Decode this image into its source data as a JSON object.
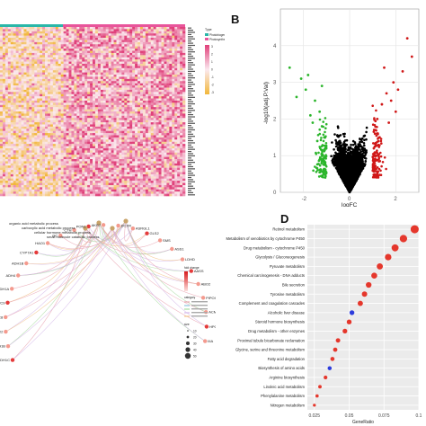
{
  "panels": {
    "a": {
      "letter": ""
    },
    "b": {
      "letter": "B"
    },
    "c": {
      "letter": ""
    },
    "d": {
      "letter": "D"
    }
  },
  "colors": {
    "heat_low": "#f2b73a",
    "heat_mid": "#fbe9ef",
    "heat_high": "#e0407a",
    "volcano_down": "#2bb52b",
    "volcano_up": "#d01818",
    "volcano_ns": "#000000",
    "dot_red": "#e5372c",
    "dot_blue": "#2c3cdc"
  },
  "chart_data": [
    {
      "panel": "A",
      "type": "heatmap",
      "title": "",
      "legend": {
        "group_title": "Type",
        "groups": [
          "Photobiogenesis",
          "Photosynthesis"
        ],
        "group_colors": [
          "#2ab7a8",
          "#e8559b"
        ],
        "scale_labels": [
          "3",
          "2",
          "1",
          "0",
          "-1",
          "-2",
          "-3"
        ]
      },
      "rows": 78,
      "columns": 70,
      "legend_position": "right"
    },
    {
      "panel": "B",
      "type": "scatter",
      "title": "",
      "xlabel": "logFC",
      "ylabel": "-log10(adj.P.Val)",
      "xlim": [
        -3,
        3
      ],
      "ylim": [
        0,
        5
      ],
      "xticks": [
        "-2",
        "0",
        "2"
      ],
      "yticks": [
        "0",
        "1",
        "2",
        "3",
        "4"
      ],
      "grid": true,
      "series": [
        {
          "name": "",
          "color": "#2bb52b",
          "points": [
            [
              -2.6,
              3.4
            ],
            [
              -2.1,
              3.1
            ],
            [
              -1.9,
              2.8
            ],
            [
              -1.5,
              2.5
            ],
            [
              -1.3,
              2.2
            ],
            [
              -1.2,
              1.8
            ],
            [
              -1.1,
              1.5
            ],
            [
              -1.05,
              1.2
            ],
            [
              -1.6,
              1.9
            ],
            [
              -2.3,
              2.6
            ],
            [
              -1.4,
              1.4
            ],
            [
              -1.2,
              2.9
            ],
            [
              -1.8,
              3.2
            ],
            [
              -1.15,
              1.0
            ],
            [
              -1.7,
              2.1
            ]
          ]
        },
        {
          "name": "",
          "color": "#d01818",
          "points": [
            [
              2.7,
              3.7
            ],
            [
              2.3,
              3.3
            ],
            [
              1.9,
              3.0
            ],
            [
              1.6,
              2.7
            ],
            [
              1.4,
              2.4
            ],
            [
              1.2,
              2.0
            ],
            [
              1.1,
              1.6
            ],
            [
              1.05,
              1.2
            ],
            [
              2.0,
              2.2
            ],
            [
              1.3,
              1.5
            ],
            [
              1.7,
              1.9
            ],
            [
              2.5,
              4.2
            ],
            [
              1.15,
              1.0
            ],
            [
              1.5,
              3.4
            ],
            [
              2.1,
              2.8
            ],
            [
              1.8,
              2.5
            ]
          ]
        }
      ]
    },
    {
      "panel": "C",
      "type": "table",
      "title": "",
      "left_terms": [
        "organic acid metabolic process",
        "carboxylic acid metabolic process",
        "cellular hormone metabolic process",
        "small molecule catabolic process"
      ],
      "genes": [
        "ADH1C",
        "ADH1B",
        "EPHX2",
        "CYP2C8",
        "CYP2C9",
        "ADH1A",
        "ADH4",
        "ADH1B",
        "CYP7A1",
        "HAO1",
        "GC",
        "CTH",
        "PON1",
        "AKR7",
        "DCXR",
        "ASRGL1",
        "GLS2",
        "SMS",
        "ASS1",
        "LDHD",
        "AASS",
        "ABO2",
        "PIPOX",
        "ACMSD",
        "HPGD",
        "IIIA"
      ],
      "legend_fold_title": "fold change",
      "legend_category_title": "category",
      "legend_size_title": "size",
      "legend_sizes": [
        "10",
        "20",
        "30",
        "40",
        "50"
      ]
    },
    {
      "panel": "D",
      "type": "scatter",
      "title": "",
      "xlabel": "GeneRatio",
      "xlim": [
        0.02,
        0.1
      ],
      "xticks": [
        0.025,
        0.05,
        0.075,
        0.1
      ],
      "categories": [
        "Retinol metabolism",
        "Metabolism of xenobiotics by cytochrome P450",
        "Drug metabolism - cytochrome P450",
        "Glycolysis / Gluconeogenesis",
        "Pyruvate metabolism",
        "Chemical carcinogenesis - DNA adducts",
        "Bile secretion",
        "Tyrosine metabolism",
        "Complement and coagulation cascades",
        "Alcoholic liver disease",
        "Steroid hormone biosynthesis",
        "Drug metabolism - other enzymes",
        "Proximal tubule bicarbonate reclamation",
        "Glycine, serine and threonine metabolism",
        "Fatty acid degradation",
        "Biosynthesis of amino acids",
        "Arginine biosynthesis",
        "Linoleic acid metabolism",
        "Phenylalanine metabolism",
        "Nitrogen metabolism"
      ],
      "gene_ratio": [
        0.097,
        0.089,
        0.083,
        0.078,
        0.072,
        0.068,
        0.064,
        0.061,
        0.058,
        0.052,
        0.05,
        0.047,
        0.042,
        0.04,
        0.038,
        0.036,
        0.033,
        0.029,
        0.027,
        0.025
      ],
      "dot_color": [
        "red",
        "red",
        "red",
        "red",
        "red",
        "red",
        "red",
        "red",
        "red",
        "blue",
        "red",
        "red",
        "red",
        "red",
        "red",
        "blue",
        "red",
        "red",
        "red",
        "red"
      ],
      "dot_size": [
        6,
        5.5,
        5.2,
        4.8,
        4.6,
        4.4,
        4.2,
        4.0,
        3.9,
        3.6,
        3.6,
        3.5,
        3.3,
        3.2,
        3.1,
        3.0,
        2.8,
        2.6,
        2.4,
        2.2
      ]
    }
  ]
}
